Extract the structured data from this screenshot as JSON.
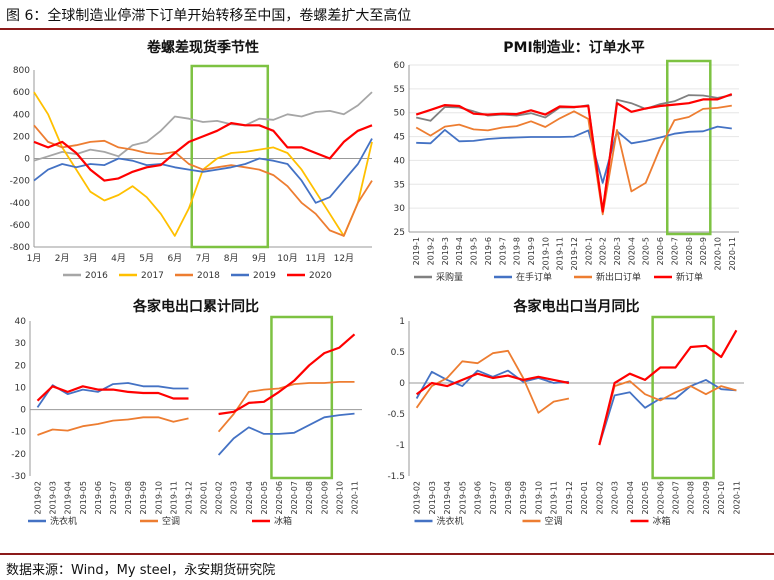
{
  "header": {
    "title": "图 6：全球制造业停滞下订单开始转移至中国，卷螺差扩大至高位"
  },
  "footer": {
    "source": "数据来源：Wind，My steel，永安期货研究院"
  },
  "colors": {
    "rule": "#8b1a1a",
    "highlight": "#7dc242"
  },
  "chart_data": [
    {
      "type": "line",
      "title": "卷螺差现货季节性",
      "ylim": [
        -800,
        800
      ],
      "yticks": [
        -800,
        -600,
        -400,
        -200,
        0,
        200,
        400,
        600,
        800
      ],
      "xlim": [
        1,
        13
      ],
      "categories": [
        "1月",
        "2月",
        "3月",
        "4月",
        "5月",
        "6月",
        "7月",
        "8月",
        "9月",
        "10月",
        "11月",
        "12月"
      ],
      "legend_position": "bottom",
      "highlight_x": [
        6.6,
        9.3
      ],
      "series": [
        {
          "name": "2016",
          "color": "#a6a6a6",
          "x": [
            1,
            1.5,
            2,
            2.5,
            3,
            3.5,
            4,
            4.5,
            5,
            5.5,
            6,
            6.5,
            7,
            7.5,
            8,
            8.5,
            9,
            9.5,
            10,
            10.5,
            11,
            11.5,
            12,
            12.5,
            13
          ],
          "y": [
            -20,
            20,
            60,
            40,
            80,
            60,
            20,
            120,
            150,
            250,
            380,
            360,
            330,
            340,
            310,
            300,
            360,
            350,
            400,
            380,
            420,
            430,
            400,
            480,
            600
          ]
        },
        {
          "name": "2017",
          "color": "#ffc000",
          "x": [
            1,
            1.5,
            2,
            2.5,
            3,
            3.5,
            4,
            4.5,
            5,
            5.5,
            6,
            6.5,
            7,
            7.5,
            8,
            8.5,
            9,
            9.5,
            10,
            10.5,
            11,
            11.5,
            12,
            12.5,
            13
          ],
          "y": [
            600,
            400,
            100,
            -100,
            -300,
            -380,
            -330,
            -250,
            -350,
            -500,
            -700,
            -450,
            -100,
            0,
            50,
            60,
            80,
            100,
            50,
            -100,
            -300,
            -500,
            -700,
            -400,
            150
          ]
        },
        {
          "name": "2018",
          "color": "#ed7d31",
          "x": [
            1,
            1.5,
            2,
            2.5,
            3,
            3.5,
            4,
            4.5,
            5,
            5.5,
            6,
            6.5,
            7,
            7.5,
            8,
            8.5,
            9,
            9.5,
            10,
            10.5,
            11,
            11.5,
            12,
            12.5,
            13
          ],
          "y": [
            300,
            150,
            100,
            120,
            150,
            160,
            100,
            80,
            50,
            40,
            60,
            -50,
            -100,
            -80,
            -60,
            -80,
            -100,
            -150,
            -250,
            -400,
            -500,
            -650,
            -700,
            -400,
            -200
          ]
        },
        {
          "name": "2019",
          "color": "#4472c4",
          "x": [
            1,
            1.5,
            2,
            2.5,
            3,
            3.5,
            4,
            4.5,
            5,
            5.5,
            6,
            6.5,
            7,
            7.5,
            8,
            8.5,
            9,
            9.5,
            10,
            10.5,
            11,
            11.5,
            12,
            12.5,
            13
          ],
          "y": [
            -200,
            -100,
            -50,
            -80,
            -50,
            -60,
            0,
            -20,
            -60,
            -50,
            -80,
            -100,
            -120,
            -100,
            -80,
            -50,
            0,
            -20,
            -50,
            -200,
            -400,
            -350,
            -200,
            -50,
            180
          ]
        },
        {
          "name": "2020",
          "color": "#ff0000",
          "x": [
            1,
            1.5,
            2,
            2.5,
            3,
            3.5,
            4,
            4.5,
            5,
            5.5,
            6,
            6.5,
            7,
            7.5,
            8,
            8.5,
            9,
            9.5,
            10,
            10.5,
            11,
            11.5,
            12,
            12.5,
            13
          ],
          "y": [
            150,
            100,
            150,
            50,
            -100,
            -200,
            -180,
            -120,
            -80,
            -60,
            50,
            150,
            200,
            250,
            320,
            300,
            300,
            250,
            100,
            100,
            50,
            0,
            150,
            250,
            300
          ]
        }
      ]
    },
    {
      "type": "line",
      "title": "PMI制造业：订单水平",
      "ylim": [
        25,
        60
      ],
      "yticks": [
        25,
        30,
        35,
        40,
        45,
        50,
        55,
        60
      ],
      "categories": [
        "2019-1",
        "2019-2",
        "2019-3",
        "2019-4",
        "2019-5",
        "2019-6",
        "2019-7",
        "2019-8",
        "2019-9",
        "2019-10",
        "2019-11",
        "2019-12",
        "2020-1",
        "2020-2",
        "2020-3",
        "2020-4",
        "2020-5",
        "2020-6",
        "2020-7",
        "2020-8",
        "2020-9",
        "2020-10",
        "2020-11"
      ],
      "legend_position": "bottom",
      "highlight_categories": [
        "2020-7",
        "2020-9"
      ],
      "series": [
        {
          "name": "采购量",
          "color": "#808080",
          "values": [
            49.0,
            48.3,
            51.2,
            51.1,
            50.3,
            49.4,
            49.6,
            49.4,
            49.9,
            49.0,
            51.1,
            51.1,
            51.6,
            29.3,
            52.7,
            52.0,
            50.8,
            51.8,
            52.4,
            53.7,
            53.6,
            53.1,
            53.7
          ]
        },
        {
          "name": "在手订单",
          "color": "#4472c4",
          "values": [
            43.7,
            43.6,
            46.4,
            44.0,
            44.1,
            44.5,
            44.7,
            44.8,
            44.9,
            44.9,
            44.9,
            45.0,
            46.3,
            35.3,
            46.1,
            43.6,
            44.1,
            44.8,
            45.6,
            46.0,
            46.1,
            47.1,
            46.7
          ]
        },
        {
          "name": "新出口订单",
          "color": "#ed7d31",
          "values": [
            46.9,
            45.2,
            47.1,
            47.5,
            46.5,
            46.3,
            46.9,
            47.2,
            48.2,
            47.0,
            48.8,
            50.3,
            48.7,
            28.7,
            46.4,
            33.5,
            35.3,
            42.6,
            48.4,
            49.1,
            50.8,
            51.0,
            51.5
          ]
        },
        {
          "name": "新订单",
          "color": "#ff0000",
          "values": [
            49.6,
            50.6,
            51.6,
            51.4,
            49.8,
            49.6,
            49.8,
            49.7,
            50.5,
            49.6,
            51.3,
            51.2,
            51.4,
            29.3,
            52.0,
            50.2,
            50.9,
            51.4,
            51.7,
            52.0,
            52.8,
            52.8,
            53.9
          ]
        }
      ]
    },
    {
      "type": "line",
      "title": "各家电出口累计同比",
      "ylim": [
        -30,
        40
      ],
      "yticks": [
        -30,
        -20,
        -10,
        0,
        10,
        20,
        30,
        40
      ],
      "categories": [
        "2019-02",
        "2019-03",
        "2019-04",
        "2019-05",
        "2019-06",
        "2019-07",
        "2019-08",
        "2019-09",
        "2019-10",
        "2019-11",
        "2019-12",
        "2020-01",
        "2020-02",
        "2020-03",
        "2020-04",
        "2020-05",
        "2020-06",
        "2020-07",
        "2020-08",
        "2020-09",
        "2020-10",
        "2020-11"
      ],
      "legend_position": "bottom",
      "highlight_categories": [
        "2020-06",
        "2020-09"
      ],
      "series": [
        {
          "name": "洗衣机",
          "color": "#4472c4",
          "values": [
            1,
            11,
            7,
            9,
            8,
            11.5,
            12,
            10.5,
            10.5,
            9.5,
            9.5,
            null,
            -20.5,
            -13,
            -8,
            -11,
            -11,
            -10.5,
            -7,
            -3.5,
            -2.5,
            -1.8
          ]
        },
        {
          "name": "空调",
          "color": "#ed7d31",
          "values": [
            -11.5,
            -9,
            -9.5,
            -7.5,
            -6.5,
            -5,
            -4.5,
            -3.5,
            -3.5,
            -5.5,
            -4,
            null,
            -10,
            -2,
            8,
            9,
            9.5,
            11.5,
            12,
            12,
            12.5,
            12.5
          ]
        },
        {
          "name": "冰箱",
          "color": "#ff0000",
          "values": [
            4,
            10.5,
            8,
            10.5,
            9,
            9,
            8,
            7.5,
            7.5,
            5,
            5,
            null,
            -2,
            -1,
            3,
            3.5,
            8,
            13,
            20,
            25.5,
            28,
            34
          ]
        }
      ]
    },
    {
      "type": "line",
      "title": "各家电出口当月同比",
      "ylim": [
        -1.5,
        1
      ],
      "yticks": [
        -1.5,
        -1,
        -0.5,
        0,
        0.5,
        1
      ],
      "categories": [
        "2019-02",
        "2019-03",
        "2019-04",
        "2019-05",
        "2019-06",
        "2019-07",
        "2019-08",
        "2019-09",
        "2019-10",
        "2019-11",
        "2019-12",
        "2020-01",
        "2020-02",
        "2020-03",
        "2020-04",
        "2020-05",
        "2020-06",
        "2020-07",
        "2020-08",
        "2020-09",
        "2020-10",
        "2020-11"
      ],
      "legend_position": "bottom",
      "highlight_categories": [
        "2020-06",
        "2020-09"
      ],
      "series": [
        {
          "name": "洗衣机",
          "color": "#4472c4",
          "values": [
            -0.25,
            0.18,
            0.05,
            -0.05,
            0.2,
            0.1,
            0.2,
            0.02,
            0.08,
            0,
            0.02,
            null,
            -1,
            -0.2,
            -0.15,
            -0.4,
            -0.25,
            -0.25,
            -0.05,
            0.05,
            -0.1,
            -0.12
          ]
        },
        {
          "name": "空调",
          "color": "#ed7d31",
          "values": [
            -0.4,
            -0.05,
            0.08,
            0.35,
            0.32,
            0.48,
            0.52,
            0.08,
            -0.48,
            -0.3,
            -0.25,
            null,
            -1,
            -0.05,
            0.03,
            -0.18,
            -0.28,
            -0.15,
            -0.05,
            -0.18,
            -0.05,
            -0.12
          ]
        },
        {
          "name": "冰箱",
          "color": "#ff0000",
          "values": [
            -0.18,
            0,
            -0.05,
            0.05,
            0.15,
            0.08,
            0.12,
            0.05,
            0.1,
            0.05,
            0,
            null,
            -1,
            0,
            0.15,
            0.05,
            0.25,
            0.25,
            0.58,
            0.6,
            0.42,
            0.85
          ]
        }
      ]
    }
  ]
}
